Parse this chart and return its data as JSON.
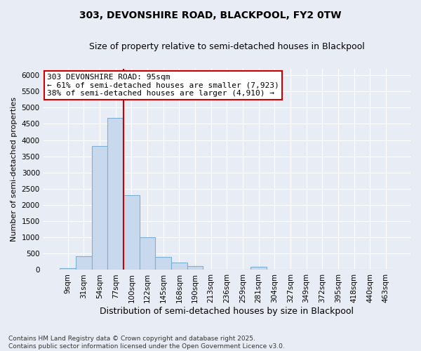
{
  "title": "303, DEVONSHIRE ROAD, BLACKPOOL, FY2 0TW",
  "subtitle": "Size of property relative to semi-detached houses in Blackpool",
  "xlabel": "Distribution of semi-detached houses by size in Blackpool",
  "ylabel": "Number of semi-detached properties",
  "categories": [
    "9sqm",
    "31sqm",
    "54sqm",
    "77sqm",
    "100sqm",
    "122sqm",
    "145sqm",
    "168sqm",
    "190sqm",
    "213sqm",
    "236sqm",
    "259sqm",
    "281sqm",
    "304sqm",
    "327sqm",
    "349sqm",
    "372sqm",
    "395sqm",
    "418sqm",
    "440sqm",
    "463sqm"
  ],
  "values": [
    50,
    430,
    3820,
    4680,
    2310,
    1000,
    400,
    230,
    110,
    0,
    0,
    0,
    100,
    0,
    0,
    0,
    0,
    0,
    0,
    0,
    0
  ],
  "bar_color": "#c9d9ed",
  "bar_edge_color": "#7bafd4",
  "vline_color": "#cc0000",
  "vline_position": 3.5,
  "annotation_line1": "303 DEVONSHIRE ROAD: 95sqm",
  "annotation_line2": "← 61% of semi-detached houses are smaller (7,923)",
  "annotation_line3": "38% of semi-detached houses are larger (4,910) →",
  "annotation_box_color": "#ffffff",
  "annotation_box_edge": "#cc0000",
  "ylim": [
    0,
    6200
  ],
  "yticks": [
    0,
    500,
    1000,
    1500,
    2000,
    2500,
    3000,
    3500,
    4000,
    4500,
    5000,
    5500,
    6000
  ],
  "bg_color": "#e8edf5",
  "plot_bg_color": "#e8edf5",
  "grid_color": "#ffffff",
  "footnote": "Contains HM Land Registry data © Crown copyright and database right 2025.\nContains public sector information licensed under the Open Government Licence v3.0.",
  "title_fontsize": 10,
  "subtitle_fontsize": 9,
  "ylabel_fontsize": 8,
  "xlabel_fontsize": 9,
  "tick_fontsize": 7.5,
  "footnote_fontsize": 6.5,
  "ann_fontsize": 8
}
